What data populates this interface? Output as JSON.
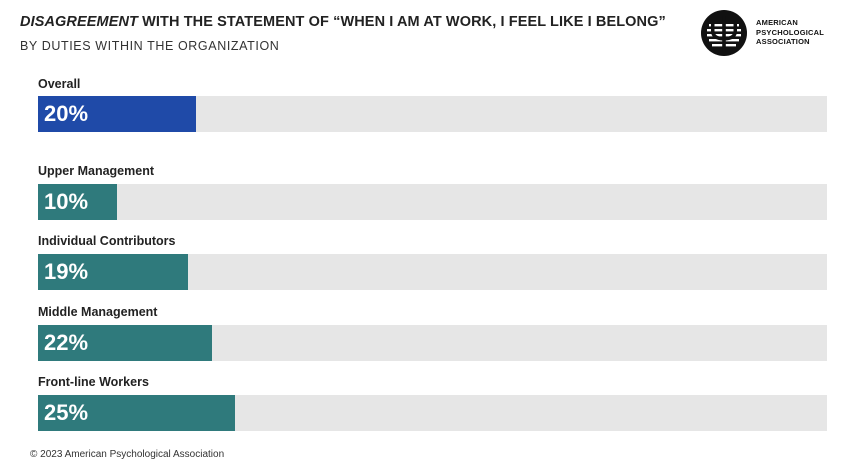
{
  "title_emph": "DISAGREEMENT",
  "title_rest": " WITH THE STATEMENT OF “WHEN I AM AT WORK, I FEEL LIKE I BELONG”",
  "subtitle": "BY DUTIES WITHIN THE ORGANIZATION",
  "logo": {
    "icon": "psi-icon",
    "text": "AMERICAN\nPSYCHOLOGICAL\nASSOCIATION"
  },
  "colors": {
    "overall": "#1f4aa8",
    "group": "#2f7a7c",
    "track": "#e6e6e6"
  },
  "footer": "© 2023 American Psychological Association",
  "chart_data": {
    "type": "bar",
    "orientation": "horizontal",
    "categories": [
      "Overall",
      "Upper Management",
      "Individual Contributors",
      "Middle Management",
      "Front-line Workers"
    ],
    "values": [
      20,
      10,
      19,
      22,
      25
    ],
    "value_labels": [
      "20%",
      "10%",
      "19%",
      "22%",
      "25%"
    ],
    "xlim": [
      0,
      100
    ],
    "title": "DISAGREEMENT WITH THE STATEMENT OF “WHEN I AM AT WORK, I FEEL LIKE I BELONG”",
    "subtitle": "BY DUTIES WITHIN THE ORGANIZATION",
    "grid": false
  }
}
